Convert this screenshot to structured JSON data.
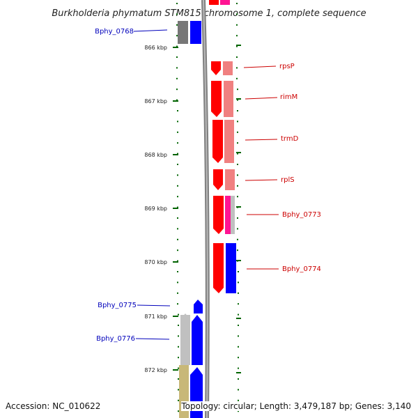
{
  "title": "Burkholderia phymatum STM815 chromosome 1, complete sequence",
  "ruler": {
    "labels": [
      "866 kbp",
      "867 kbp",
      "868 kbp",
      "869 kbp",
      "870 kbp",
      "871 kbp",
      "872 kbp"
    ]
  },
  "genes": [
    {
      "name": "Bphy_0768",
      "side": "left",
      "color": "#0000bb"
    },
    {
      "name": "rpsP",
      "side": "right",
      "color": "#cc0000"
    },
    {
      "name": "rimM",
      "side": "right",
      "color": "#cc0000"
    },
    {
      "name": "trmD",
      "side": "right",
      "color": "#cc0000"
    },
    {
      "name": "rplS",
      "side": "right",
      "color": "#cc0000"
    },
    {
      "name": "Bphy_0773",
      "side": "right",
      "color": "#cc0000"
    },
    {
      "name": "Bphy_0774",
      "side": "right",
      "color": "#cc0000"
    },
    {
      "name": "Bphy_0775",
      "side": "left",
      "color": "#0000bb"
    },
    {
      "name": "Bphy_0776",
      "side": "left",
      "color": "#0000bb"
    }
  ],
  "colors": {
    "forward_strand": "#ff0000",
    "forward_light": "#f08080",
    "reverse_strand": "#0000ff",
    "pseudo": "#ff1493",
    "gray": "#c0c0c0",
    "tan": "#c8b878",
    "tick": "#006400"
  },
  "footer": {
    "accession": "Accession: NC_010622",
    "topology": "Topology: circular; Length: 3,479,187 bp; Genes: 3,140"
  }
}
